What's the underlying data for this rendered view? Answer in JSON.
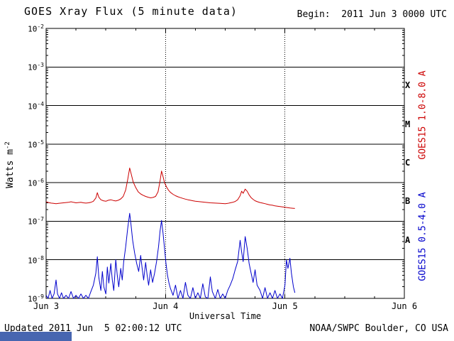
{
  "header": {
    "title": "GOES Xray Flux (5 minute data)",
    "begin": "Begin:  2011 Jun 3 0000 UTC"
  },
  "axes": {
    "y_label_base": "Watts m",
    "y_label_exponent": "-2",
    "x_label": "Universal Time",
    "flare_classes": [
      "X",
      "M",
      "C",
      "B",
      "A"
    ],
    "y_tick_base": "10"
  },
  "footer": {
    "updated": "Updated 2011 Jun  5 02:00:12 UTC",
    "source": "NOAA/SWPC Boulder, CO USA"
  },
  "ui": {
    "background_color": "#ffffff",
    "axis_color": "#000000",
    "bottom_bar_color": "#4766b0"
  },
  "chart_data": {
    "type": "line",
    "title": "GOES Xray Flux (5 minute data)",
    "xlabel": "Universal Time",
    "ylabel": "Watts m^-2",
    "y_scale": "log",
    "xlim_hours": [
      0,
      72
    ],
    "ylim_log10": [
      -9,
      -2
    ],
    "y_tick_exponents": [
      -2,
      -3,
      -4,
      -5,
      -6,
      -7,
      -8,
      -9
    ],
    "x_ticks": [
      {
        "hour": 0,
        "label": "Jun 3"
      },
      {
        "hour": 24,
        "label": "Jun 4"
      },
      {
        "hour": 48,
        "label": "Jun 5"
      },
      {
        "hour": 72,
        "label": "Jun 6"
      }
    ],
    "series": [
      {
        "name": "GOES15 1.0-8.0 A",
        "color": "#cc0000",
        "points": [
          [
            0,
            3.2e-07
          ],
          [
            0.5,
            3.05e-07
          ],
          [
            1,
            2.95e-07
          ],
          [
            1.5,
            2.9e-07
          ],
          [
            2,
            2.85e-07
          ],
          [
            2.5,
            2.9e-07
          ],
          [
            3,
            2.95e-07
          ],
          [
            3.5,
            3e-07
          ],
          [
            4,
            3.05e-07
          ],
          [
            4.5,
            3.1e-07
          ],
          [
            5,
            3.2e-07
          ],
          [
            5.5,
            3.1e-07
          ],
          [
            6,
            3e-07
          ],
          [
            6.5,
            3.05e-07
          ],
          [
            7,
            3.1e-07
          ],
          [
            7.5,
            3e-07
          ],
          [
            8,
            2.95e-07
          ],
          [
            8.5,
            3e-07
          ],
          [
            9,
            3.1e-07
          ],
          [
            9.5,
            3.3e-07
          ],
          [
            10,
            4e-07
          ],
          [
            10.3,
            5.5e-07
          ],
          [
            10.6,
            4.2e-07
          ],
          [
            11,
            3.6e-07
          ],
          [
            11.5,
            3.4e-07
          ],
          [
            12,
            3.3e-07
          ],
          [
            12.5,
            3.5e-07
          ],
          [
            13,
            3.6e-07
          ],
          [
            13.5,
            3.45e-07
          ],
          [
            14,
            3.35e-07
          ],
          [
            14.5,
            3.5e-07
          ],
          [
            15,
            3.8e-07
          ],
          [
            15.5,
            4.4e-07
          ],
          [
            16,
            6.5e-07
          ],
          [
            16.4,
            1.2e-06
          ],
          [
            16.8,
            2.4e-06
          ],
          [
            17.1,
            1.7e-06
          ],
          [
            17.5,
            1.05e-06
          ],
          [
            18,
            7.5e-07
          ],
          [
            18.5,
            5.8e-07
          ],
          [
            19,
            5.1e-07
          ],
          [
            19.5,
            4.7e-07
          ],
          [
            20,
            4.4e-07
          ],
          [
            20.5,
            4.2e-07
          ],
          [
            21,
            4.05e-07
          ],
          [
            21.5,
            4.15e-07
          ],
          [
            22,
            4.4e-07
          ],
          [
            22.5,
            5.8e-07
          ],
          [
            22.9,
            1.1e-06
          ],
          [
            23.2,
            2e-06
          ],
          [
            23.5,
            1.45e-06
          ],
          [
            23.8,
            1e-06
          ],
          [
            24.2,
            7.8e-07
          ],
          [
            24.6,
            6.4e-07
          ],
          [
            25,
            5.6e-07
          ],
          [
            25.5,
            5e-07
          ],
          [
            26,
            4.6e-07
          ],
          [
            26.5,
            4.3e-07
          ],
          [
            27,
            4.1e-07
          ],
          [
            27.5,
            3.9e-07
          ],
          [
            28,
            3.75e-07
          ],
          [
            28.5,
            3.6e-07
          ],
          [
            29,
            3.5e-07
          ],
          [
            29.5,
            3.4e-07
          ],
          [
            30,
            3.3e-07
          ],
          [
            31,
            3.2e-07
          ],
          [
            32,
            3.1e-07
          ],
          [
            33,
            3e-07
          ],
          [
            34,
            2.95e-07
          ],
          [
            35,
            2.9e-07
          ],
          [
            36,
            2.85e-07
          ],
          [
            36.5,
            2.9e-07
          ],
          [
            37,
            3e-07
          ],
          [
            37.5,
            3.1e-07
          ],
          [
            38,
            3.25e-07
          ],
          [
            38.5,
            3.6e-07
          ],
          [
            39,
            4.6e-07
          ],
          [
            39.3,
            6e-07
          ],
          [
            39.6,
            5.3e-07
          ],
          [
            40,
            6.8e-07
          ],
          [
            40.4,
            6e-07
          ],
          [
            40.8,
            4.8e-07
          ],
          [
            41.2,
            4.1e-07
          ],
          [
            41.6,
            3.7e-07
          ],
          [
            42,
            3.4e-07
          ],
          [
            42.5,
            3.2e-07
          ],
          [
            43,
            3.05e-07
          ],
          [
            43.5,
            2.95e-07
          ],
          [
            44,
            2.85e-07
          ],
          [
            44.5,
            2.75e-07
          ],
          [
            45,
            2.65e-07
          ],
          [
            45.5,
            2.6e-07
          ],
          [
            46,
            2.5e-07
          ],
          [
            46.5,
            2.45e-07
          ],
          [
            47,
            2.4e-07
          ],
          [
            47.5,
            2.35e-07
          ],
          [
            48,
            2.3e-07
          ],
          [
            48.5,
            2.25e-07
          ],
          [
            49,
            2.2e-07
          ],
          [
            49.5,
            2.18e-07
          ],
          [
            50,
            2.15e-07
          ]
        ]
      },
      {
        "name": "GOES15 0.5-4.0 A",
        "color": "#0000cc",
        "points": [
          [
            0,
            1.2e-09
          ],
          [
            0.4,
            1e-09
          ],
          [
            0.8,
            1.6e-09
          ],
          [
            1.2,
            1e-09
          ],
          [
            1.6,
            1.3e-09
          ],
          [
            2,
            3e-09
          ],
          [
            2.3,
            1.3e-09
          ],
          [
            2.7,
            1e-09
          ],
          [
            3.1,
            1.4e-09
          ],
          [
            3.5,
            1e-09
          ],
          [
            4,
            1.2e-09
          ],
          [
            4.5,
            1e-09
          ],
          [
            5,
            1.5e-09
          ],
          [
            5.5,
            1e-09
          ],
          [
            6,
            1.2e-09
          ],
          [
            6.5,
            1e-09
          ],
          [
            7,
            1.3e-09
          ],
          [
            7.5,
            1e-09
          ],
          [
            8,
            1.2e-09
          ],
          [
            8.5,
            1e-09
          ],
          [
            9,
            1.5e-09
          ],
          [
            9.5,
            2.2e-09
          ],
          [
            10,
            4.5e-09
          ],
          [
            10.3,
            1.2e-08
          ],
          [
            10.6,
            3.5e-09
          ],
          [
            11,
            1.6e-09
          ],
          [
            11.3,
            5e-09
          ],
          [
            11.6,
            2e-09
          ],
          [
            12,
            1.3e-09
          ],
          [
            12.3,
            6.5e-09
          ],
          [
            12.6,
            2.5e-09
          ],
          [
            13,
            8e-09
          ],
          [
            13.3,
            3e-09
          ],
          [
            13.6,
            1.6e-09
          ],
          [
            14,
            1e-08
          ],
          [
            14.3,
            4e-09
          ],
          [
            14.6,
            2e-09
          ],
          [
            15,
            6e-09
          ],
          [
            15.3,
            3e-09
          ],
          [
            15.6,
            9e-09
          ],
          [
            16,
            2.2e-08
          ],
          [
            16.4,
            6.5e-08
          ],
          [
            16.8,
            1.6e-07
          ],
          [
            17.1,
            7.5e-08
          ],
          [
            17.4,
            3.2e-08
          ],
          [
            17.8,
            1.5e-08
          ],
          [
            18.2,
            8e-09
          ],
          [
            18.6,
            5e-09
          ],
          [
            19,
            1.3e-08
          ],
          [
            19.3,
            6e-09
          ],
          [
            19.6,
            3e-09
          ],
          [
            20,
            8.5e-09
          ],
          [
            20.3,
            4e-09
          ],
          [
            20.6,
            2.2e-09
          ],
          [
            21,
            5.5e-09
          ],
          [
            21.4,
            2.6e-09
          ],
          [
            21.8,
            4.5e-09
          ],
          [
            22.2,
            9e-09
          ],
          [
            22.6,
            2.2e-08
          ],
          [
            22.9,
            5.5e-08
          ],
          [
            23.2,
            1.05e-07
          ],
          [
            23.5,
            5e-08
          ],
          [
            23.8,
            2e-08
          ],
          [
            24.1,
            8e-09
          ],
          [
            24.4,
            4e-09
          ],
          [
            24.7,
            2.5e-09
          ],
          [
            25,
            1.8e-09
          ],
          [
            25.5,
            1.2e-09
          ],
          [
            26,
            2.2e-09
          ],
          [
            26.5,
            1e-09
          ],
          [
            27,
            1.6e-09
          ],
          [
            27.5,
            1e-09
          ],
          [
            28,
            2.6e-09
          ],
          [
            28.5,
            1.2e-09
          ],
          [
            29,
            1e-09
          ],
          [
            29.5,
            1.9e-09
          ],
          [
            30,
            1e-09
          ],
          [
            30.5,
            1.4e-09
          ],
          [
            31,
            1e-09
          ],
          [
            31.5,
            2.4e-09
          ],
          [
            32,
            1.1e-09
          ],
          [
            32.5,
            1e-09
          ],
          [
            33,
            3.6e-09
          ],
          [
            33.4,
            1.5e-09
          ],
          [
            34,
            1e-09
          ],
          [
            34.5,
            1.7e-09
          ],
          [
            35,
            1e-09
          ],
          [
            35.5,
            1.3e-09
          ],
          [
            36,
            1e-09
          ],
          [
            36.5,
            1.6e-09
          ],
          [
            37,
            2.2e-09
          ],
          [
            37.5,
            3.2e-09
          ],
          [
            38,
            5.5e-09
          ],
          [
            38.5,
            9e-09
          ],
          [
            39,
            3.2e-08
          ],
          [
            39.3,
            1.6e-08
          ],
          [
            39.6,
            9e-09
          ],
          [
            40,
            4e-08
          ],
          [
            40.4,
            2e-08
          ],
          [
            40.8,
            8e-09
          ],
          [
            41.2,
            4.5e-09
          ],
          [
            41.6,
            2.6e-09
          ],
          [
            42,
            5.5e-09
          ],
          [
            42.4,
            2.2e-09
          ],
          [
            43,
            1.6e-09
          ],
          [
            43.5,
            1e-09
          ],
          [
            44,
            1.9e-09
          ],
          [
            44.5,
            1e-09
          ],
          [
            45,
            1.4e-09
          ],
          [
            45.5,
            1e-09
          ],
          [
            46,
            1.6e-09
          ],
          [
            46.5,
            1e-09
          ],
          [
            47,
            1.3e-09
          ],
          [
            47.5,
            1e-09
          ],
          [
            48,
            2.2e-09
          ],
          [
            48.3,
            1e-08
          ],
          [
            48.6,
            6e-09
          ],
          [
            49,
            1.1e-08
          ],
          [
            49.3,
            4.5e-09
          ],
          [
            49.7,
            2e-09
          ],
          [
            50,
            1.4e-09
          ]
        ]
      }
    ]
  }
}
